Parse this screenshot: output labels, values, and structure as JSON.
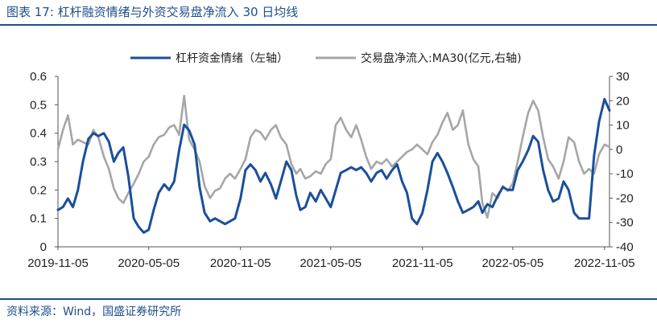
{
  "header": {
    "title": "图表 17:  杠杆融资情绪与外资交易盘净流入 30 日均线"
  },
  "footer": {
    "source": "资料来源：Wind，国盛证券研究所"
  },
  "colors": {
    "brand": "#1f4e8c",
    "series_left": "#1a4f9c",
    "series_right": "#a6a6a6"
  },
  "chart_data": {
    "type": "line",
    "legend_position": "top",
    "grid": false,
    "x_ticks": [
      "2019-11-05",
      "2020-05-05",
      "2020-11-05",
      "2021-05-05",
      "2021-11-05",
      "2022-05-05",
      "2022-11-05"
    ],
    "x_range": [
      "2019-11-05",
      "2022-11-15"
    ],
    "left_axis": {
      "ticks": [
        "0",
        "0.1",
        "0.2",
        "0.3",
        "0.4",
        "0.5",
        "0.6"
      ],
      "ylim": [
        0,
        0.6
      ]
    },
    "right_axis": {
      "ticks": [
        "-40",
        "-30",
        "-20",
        "-10",
        "0",
        "10",
        "20",
        "30"
      ],
      "ylim": [
        -40,
        30
      ]
    },
    "series": [
      {
        "name": "杠杆资金情绪（左轴）",
        "axis": "left",
        "points": [
          [
            "2019-11-05",
            0.13
          ],
          [
            "2019-11-15",
            0.14
          ],
          [
            "2019-11-25",
            0.17
          ],
          [
            "2019-12-05",
            0.14
          ],
          [
            "2019-12-15",
            0.2
          ],
          [
            "2019-12-25",
            0.3
          ],
          [
            "2020-01-05",
            0.38
          ],
          [
            "2020-01-15",
            0.4
          ],
          [
            "2020-01-25",
            0.39
          ],
          [
            "2020-02-05",
            0.4
          ],
          [
            "2020-02-15",
            0.37
          ],
          [
            "2020-02-25",
            0.3
          ],
          [
            "2020-03-05",
            0.33
          ],
          [
            "2020-03-15",
            0.35
          ],
          [
            "2020-03-25",
            0.25
          ],
          [
            "2020-04-05",
            0.1
          ],
          [
            "2020-04-15",
            0.07
          ],
          [
            "2020-04-25",
            0.05
          ],
          [
            "2020-05-05",
            0.06
          ],
          [
            "2020-05-15",
            0.13
          ],
          [
            "2020-05-25",
            0.19
          ],
          [
            "2020-06-05",
            0.22
          ],
          [
            "2020-06-15",
            0.2
          ],
          [
            "2020-06-25",
            0.23
          ],
          [
            "2020-07-05",
            0.34
          ],
          [
            "2020-07-15",
            0.43
          ],
          [
            "2020-07-25",
            0.41
          ],
          [
            "2020-08-05",
            0.36
          ],
          [
            "2020-08-15",
            0.21
          ],
          [
            "2020-08-25",
            0.12
          ],
          [
            "2020-09-05",
            0.09
          ],
          [
            "2020-09-15",
            0.1
          ],
          [
            "2020-09-25",
            0.09
          ],
          [
            "2020-10-05",
            0.08
          ],
          [
            "2020-10-15",
            0.09
          ],
          [
            "2020-10-25",
            0.1
          ],
          [
            "2020-11-05",
            0.17
          ],
          [
            "2020-11-15",
            0.27
          ],
          [
            "2020-11-25",
            0.29
          ],
          [
            "2020-12-05",
            0.27
          ],
          [
            "2020-12-15",
            0.23
          ],
          [
            "2020-12-25",
            0.26
          ],
          [
            "2021-01-05",
            0.22
          ],
          [
            "2021-01-15",
            0.17
          ],
          [
            "2021-01-25",
            0.23
          ],
          [
            "2021-02-05",
            0.3
          ],
          [
            "2021-02-15",
            0.27
          ],
          [
            "2021-02-25",
            0.18
          ],
          [
            "2021-03-05",
            0.13
          ],
          [
            "2021-03-15",
            0.14
          ],
          [
            "2021-03-25",
            0.19
          ],
          [
            "2021-04-05",
            0.16
          ],
          [
            "2021-04-15",
            0.2
          ],
          [
            "2021-04-25",
            0.17
          ],
          [
            "2021-05-05",
            0.14
          ],
          [
            "2021-05-15",
            0.2
          ],
          [
            "2021-05-25",
            0.26
          ],
          [
            "2021-06-05",
            0.27
          ],
          [
            "2021-06-15",
            0.28
          ],
          [
            "2021-06-25",
            0.27
          ],
          [
            "2021-07-05",
            0.28
          ],
          [
            "2021-07-15",
            0.26
          ],
          [
            "2021-07-25",
            0.23
          ],
          [
            "2021-08-05",
            0.26
          ],
          [
            "2021-08-15",
            0.27
          ],
          [
            "2021-08-25",
            0.24
          ],
          [
            "2021-09-05",
            0.27
          ],
          [
            "2021-09-15",
            0.29
          ],
          [
            "2021-09-25",
            0.23
          ],
          [
            "2021-10-05",
            0.19
          ],
          [
            "2021-10-15",
            0.1
          ],
          [
            "2021-10-25",
            0.08
          ],
          [
            "2021-11-05",
            0.12
          ],
          [
            "2021-11-15",
            0.2
          ],
          [
            "2021-11-25",
            0.3
          ],
          [
            "2021-12-05",
            0.33
          ],
          [
            "2021-12-15",
            0.3
          ],
          [
            "2021-12-25",
            0.26
          ],
          [
            "2022-01-05",
            0.21
          ],
          [
            "2022-01-15",
            0.16
          ],
          [
            "2022-01-25",
            0.12
          ],
          [
            "2022-02-05",
            0.13
          ],
          [
            "2022-02-15",
            0.14
          ],
          [
            "2022-02-25",
            0.16
          ],
          [
            "2022-03-05",
            0.12
          ],
          [
            "2022-03-15",
            0.15
          ],
          [
            "2022-03-25",
            0.14
          ],
          [
            "2022-04-05",
            0.18
          ],
          [
            "2022-04-15",
            0.21
          ],
          [
            "2022-04-25",
            0.2
          ],
          [
            "2022-05-05",
            0.2
          ],
          [
            "2022-05-15",
            0.27
          ],
          [
            "2022-05-25",
            0.3
          ],
          [
            "2022-06-05",
            0.34
          ],
          [
            "2022-06-15",
            0.39
          ],
          [
            "2022-06-25",
            0.37
          ],
          [
            "2022-07-05",
            0.27
          ],
          [
            "2022-07-15",
            0.2
          ],
          [
            "2022-07-25",
            0.16
          ],
          [
            "2022-08-05",
            0.17
          ],
          [
            "2022-08-15",
            0.23
          ],
          [
            "2022-08-25",
            0.2
          ],
          [
            "2022-09-05",
            0.12
          ],
          [
            "2022-09-15",
            0.1
          ],
          [
            "2022-09-25",
            0.1
          ],
          [
            "2022-10-05",
            0.1
          ],
          [
            "2022-10-15",
            0.32
          ],
          [
            "2022-10-25",
            0.44
          ],
          [
            "2022-11-05",
            0.52
          ],
          [
            "2022-11-15",
            0.48
          ]
        ]
      },
      {
        "name": "交易盘净流入:MA30(亿元,右轴)",
        "axis": "right",
        "points": [
          [
            "2019-11-05",
            0
          ],
          [
            "2019-11-15",
            8
          ],
          [
            "2019-11-25",
            14
          ],
          [
            "2019-12-05",
            2
          ],
          [
            "2019-12-15",
            4
          ],
          [
            "2019-12-25",
            3
          ],
          [
            "2020-01-05",
            2
          ],
          [
            "2020-01-15",
            8
          ],
          [
            "2020-01-25",
            5
          ],
          [
            "2020-02-05",
            -3
          ],
          [
            "2020-02-15",
            -8
          ],
          [
            "2020-02-25",
            -16
          ],
          [
            "2020-03-05",
            -20
          ],
          [
            "2020-03-15",
            -22
          ],
          [
            "2020-03-25",
            -18
          ],
          [
            "2020-04-05",
            -14
          ],
          [
            "2020-04-15",
            -10
          ],
          [
            "2020-04-25",
            -5
          ],
          [
            "2020-05-05",
            -3
          ],
          [
            "2020-05-15",
            2
          ],
          [
            "2020-05-25",
            5
          ],
          [
            "2020-06-05",
            6
          ],
          [
            "2020-06-15",
            9
          ],
          [
            "2020-06-25",
            10
          ],
          [
            "2020-07-05",
            6
          ],
          [
            "2020-07-15",
            22
          ],
          [
            "2020-07-25",
            4
          ],
          [
            "2020-08-05",
            0
          ],
          [
            "2020-08-15",
            -5
          ],
          [
            "2020-08-25",
            -15
          ],
          [
            "2020-09-05",
            -20
          ],
          [
            "2020-09-15",
            -17
          ],
          [
            "2020-09-25",
            -16
          ],
          [
            "2020-10-05",
            -12
          ],
          [
            "2020-10-15",
            -10
          ],
          [
            "2020-10-25",
            -12
          ],
          [
            "2020-11-05",
            -8
          ],
          [
            "2020-11-15",
            -4
          ],
          [
            "2020-11-25",
            5
          ],
          [
            "2020-12-05",
            8
          ],
          [
            "2020-12-15",
            7
          ],
          [
            "2020-12-25",
            4
          ],
          [
            "2021-01-05",
            8
          ],
          [
            "2021-01-15",
            10
          ],
          [
            "2021-01-25",
            5
          ],
          [
            "2021-02-05",
            2
          ],
          [
            "2021-02-15",
            -6
          ],
          [
            "2021-02-25",
            -10
          ],
          [
            "2021-03-05",
            -8
          ],
          [
            "2021-03-15",
            -12
          ],
          [
            "2021-03-25",
            -11
          ],
          [
            "2021-04-05",
            -9
          ],
          [
            "2021-04-15",
            -10
          ],
          [
            "2021-04-25",
            -6
          ],
          [
            "2021-05-05",
            -4
          ],
          [
            "2021-05-15",
            10
          ],
          [
            "2021-05-25",
            13
          ],
          [
            "2021-06-05",
            8
          ],
          [
            "2021-06-15",
            5
          ],
          [
            "2021-06-25",
            10
          ],
          [
            "2021-07-05",
            4
          ],
          [
            "2021-07-15",
            -3
          ],
          [
            "2021-07-25",
            -8
          ],
          [
            "2021-08-05",
            -5
          ],
          [
            "2021-08-15",
            -6
          ],
          [
            "2021-08-25",
            -4
          ],
          [
            "2021-09-05",
            -7
          ],
          [
            "2021-09-15",
            -5
          ],
          [
            "2021-09-25",
            -3
          ],
          [
            "2021-10-05",
            -1
          ],
          [
            "2021-10-15",
            0
          ],
          [
            "2021-10-25",
            2
          ],
          [
            "2021-11-05",
            0
          ],
          [
            "2021-11-15",
            -2
          ],
          [
            "2021-11-25",
            3
          ],
          [
            "2021-12-05",
            6
          ],
          [
            "2021-12-15",
            11
          ],
          [
            "2021-12-25",
            15
          ],
          [
            "2022-01-05",
            8
          ],
          [
            "2022-01-15",
            10
          ],
          [
            "2022-01-25",
            16
          ],
          [
            "2022-02-05",
            2
          ],
          [
            "2022-02-15",
            -4
          ],
          [
            "2022-02-25",
            -7
          ],
          [
            "2022-03-05",
            -22
          ],
          [
            "2022-03-15",
            -28
          ],
          [
            "2022-03-25",
            -18
          ],
          [
            "2022-04-05",
            -20
          ],
          [
            "2022-04-15",
            -15
          ],
          [
            "2022-04-25",
            -17
          ],
          [
            "2022-05-05",
            -14
          ],
          [
            "2022-05-15",
            -5
          ],
          [
            "2022-05-25",
            5
          ],
          [
            "2022-06-05",
            15
          ],
          [
            "2022-06-15",
            20
          ],
          [
            "2022-06-25",
            16
          ],
          [
            "2022-07-05",
            5
          ],
          [
            "2022-07-15",
            -4
          ],
          [
            "2022-07-25",
            -7
          ],
          [
            "2022-08-05",
            -12
          ],
          [
            "2022-08-15",
            -5
          ],
          [
            "2022-08-25",
            5
          ],
          [
            "2022-09-05",
            3
          ],
          [
            "2022-09-15",
            -5
          ],
          [
            "2022-09-25",
            -10
          ],
          [
            "2022-10-05",
            -8
          ],
          [
            "2022-10-15",
            -10
          ],
          [
            "2022-10-25",
            -2
          ],
          [
            "2022-11-05",
            2
          ],
          [
            "2022-11-15",
            1
          ]
        ]
      }
    ]
  }
}
